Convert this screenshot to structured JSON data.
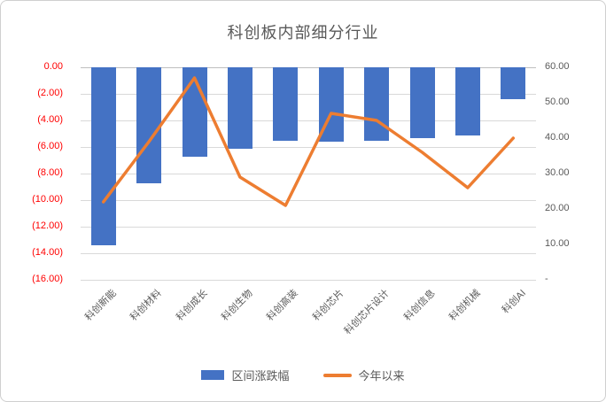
{
  "chart_data": {
    "type": "combo",
    "title": "科创板内部细分行业",
    "categories": [
      "科创新能",
      "科创材料",
      "科创成长",
      "科创生物",
      "科创高装",
      "科创芯片",
      "科创芯片设计",
      "科创信息",
      "科创机械",
      "科创AI"
    ],
    "series": [
      {
        "name": "区间涨跌幅",
        "type": "bar",
        "axis": "left",
        "color": "#4472C4",
        "values": [
          -13.4,
          -8.7,
          -6.7,
          -6.1,
          -5.5,
          -5.6,
          -5.5,
          -5.3,
          -5.1,
          -2.4
        ]
      },
      {
        "name": "今年以来",
        "type": "line",
        "axis": "right",
        "color": "#ED7D31",
        "values": [
          22,
          39,
          57,
          29,
          21,
          47,
          45,
          36,
          26,
          40
        ]
      }
    ],
    "left_axis": {
      "min": -16,
      "max": 0,
      "tick_step": 2,
      "ticks": [
        "0.00",
        "(2.00)",
        "(4.00)",
        "(6.00)",
        "(8.00)",
        "(10.00)",
        "(12.00)",
        "(14.00)",
        "(16.00)"
      ],
      "label_color": "#FF0000"
    },
    "right_axis": {
      "min": 0,
      "max": 60,
      "tick_step": 10,
      "ticks": [
        "60.00",
        "50.00",
        "40.00",
        "30.00",
        "20.00",
        "10.00",
        "-"
      ],
      "label_color": "#595959"
    },
    "grid": true,
    "legend_position": "bottom"
  }
}
